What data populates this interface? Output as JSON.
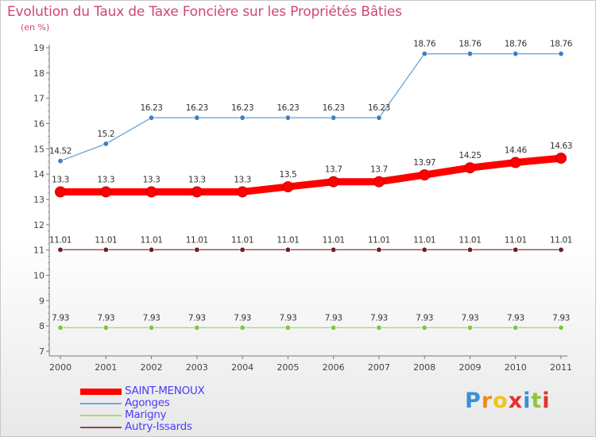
{
  "header": {
    "title": "Evolution du Taux de Taxe Foncière sur les Propriétés Bâties",
    "unit": "(en %)"
  },
  "logo": {
    "letters": [
      "P",
      "r",
      "o",
      "x",
      "i",
      "t",
      "i"
    ],
    "colors": [
      "#3a8fd6",
      "#f08a1c",
      "#f0c419",
      "#e4322b",
      "#3a8fd6",
      "#8cc63f",
      "#e4322b"
    ]
  },
  "chart_data": {
    "type": "line",
    "x": [
      "2000",
      "2001",
      "2002",
      "2003",
      "2004",
      "2005",
      "2006",
      "2007",
      "2008",
      "2009",
      "2010",
      "2011"
    ],
    "ylim": [
      7,
      19
    ],
    "yticks": [
      "7",
      "8",
      "9",
      "10",
      "11",
      "12",
      "13",
      "14",
      "15",
      "16",
      "17",
      "18",
      "19"
    ],
    "grid": false,
    "legend_position": "bottom-left",
    "series": [
      {
        "name": "SAINT-MENOUX",
        "color": "#ff0000",
        "bold": true,
        "values": [
          13.3,
          13.3,
          13.3,
          13.3,
          13.3,
          13.5,
          13.7,
          13.7,
          13.97,
          14.25,
          14.46,
          14.63
        ],
        "labels": [
          "13.3",
          "13.3",
          "13.3",
          "13.3",
          "13.3",
          "13.5",
          "13.7",
          "13.7",
          "13.97",
          "14.25",
          "14.46",
          "14.63"
        ]
      },
      {
        "name": "Agonges",
        "color": "#6fa7d8",
        "marker": "#3d7fc0",
        "values": [
          14.52,
          15.2,
          16.23,
          16.23,
          16.23,
          16.23,
          16.23,
          16.23,
          18.76,
          18.76,
          18.76,
          18.76
        ],
        "labels": [
          "14.52",
          "15.2",
          "16.23",
          "16.23",
          "16.23",
          "16.23",
          "16.23",
          "16.23",
          "18.76",
          "18.76",
          "18.76",
          "18.76"
        ]
      },
      {
        "name": "Marigny",
        "color": "#a6dc72",
        "marker": "#7ec540",
        "values": [
          7.93,
          7.93,
          7.93,
          7.93,
          7.93,
          7.93,
          7.93,
          7.93,
          7.93,
          7.93,
          7.93,
          7.93
        ],
        "labels": [
          "7.93",
          "7.93",
          "7.93",
          "7.93",
          "7.93",
          "7.93",
          "7.93",
          "7.93",
          "7.93",
          "7.93",
          "7.93",
          "7.93"
        ]
      },
      {
        "name": "Autry-Issards",
        "color": "#8a4a4a",
        "marker": "#6b1f1f",
        "values": [
          11.01,
          11.01,
          11.01,
          11.01,
          11.01,
          11.01,
          11.01,
          11.01,
          11.01,
          11.01,
          11.01,
          11.01
        ],
        "labels": [
          "11.01",
          "11.01",
          "11.01",
          "11.01",
          "11.01",
          "11.01",
          "11.01",
          "11.01",
          "11.01",
          "11.01",
          "11.01",
          "11.01"
        ]
      }
    ],
    "legend_order": [
      0,
      1,
      2,
      3
    ]
  }
}
